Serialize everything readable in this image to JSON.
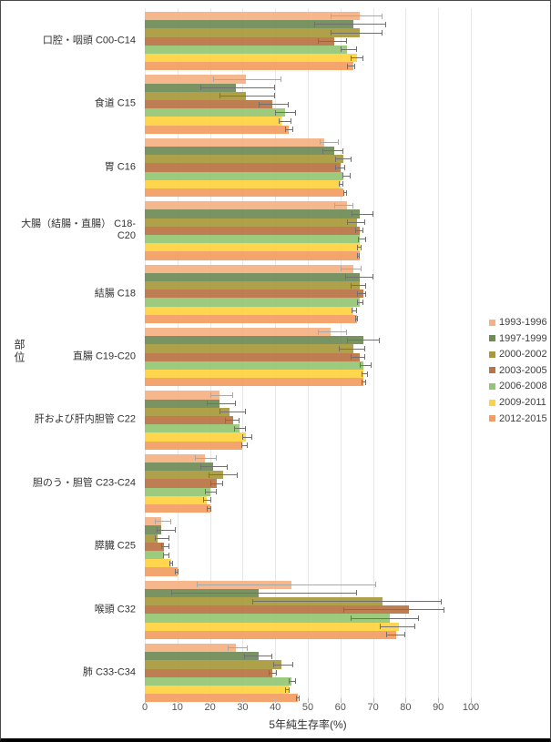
{
  "chart_data": {
    "type": "bar",
    "orientation": "horizontal",
    "xlabel": "5年純生存率(%)",
    "ylabel": "部位",
    "xlim": [
      0,
      100
    ],
    "xticks": [
      0,
      10,
      20,
      30,
      40,
      50,
      60,
      70,
      80,
      90,
      100
    ],
    "grid": true,
    "legend_position": "right",
    "error_bars": true,
    "categories": [
      "口腔・咽頭 C00-C14",
      "食道 C15",
      "胃 C16",
      "大腸（結腸・直腸） C18-C20",
      "結腸 C18",
      "直腸 C19-C20",
      "肝および肝内胆管 C22",
      "胆のう・胆管 C23-C24",
      "膵臓 C25",
      "喉頭 C32",
      "肺 C33-C34"
    ],
    "series": [
      {
        "name": "1993-1996",
        "color": "#F5B183",
        "error_color": "#a8a8a8",
        "values": [
          66,
          31,
          55,
          62,
          64,
          57,
          23,
          18.5,
          5,
          45,
          28
        ],
        "ci": [
          [
            57,
            73
          ],
          [
            21,
            42
          ],
          [
            53.5,
            59.5
          ],
          [
            58,
            64
          ],
          [
            60,
            66.5
          ],
          [
            53,
            62
          ],
          [
            20,
            27
          ],
          [
            15.5,
            22
          ],
          [
            3,
            8
          ],
          [
            16,
            71
          ],
          [
            25.5,
            31.5
          ]
        ]
      },
      {
        "name": "1997-1999",
        "color": "#6E8B55",
        "error_color": "#707070",
        "values": [
          64,
          28,
          58,
          66,
          66,
          67,
          23,
          21,
          5,
          35,
          35
        ],
        "ci": [
          [
            52,
            74
          ],
          [
            17,
            40
          ],
          [
            54.5,
            61
          ],
          [
            63.5,
            70
          ],
          [
            61.5,
            70
          ],
          [
            62,
            72
          ],
          [
            19,
            28
          ],
          [
            17,
            25.5
          ],
          [
            3.5,
            9.5
          ],
          [
            8,
            65
          ],
          [
            30.5,
            39
          ]
        ]
      },
      {
        "name": "2000-2002",
        "color": "#A89939",
        "error_color": "#707070",
        "values": [
          66,
          31,
          61,
          65,
          66,
          64,
          26,
          24,
          4,
          73,
          42
        ],
        "ci": [
          [
            57,
            73
          ],
          [
            23,
            40
          ],
          [
            58.5,
            63.5
          ],
          [
            62,
            67.5
          ],
          [
            63,
            68
          ],
          [
            59.5,
            67.5
          ],
          [
            23,
            31
          ],
          [
            19.5,
            28.5
          ],
          [
            3,
            7.5
          ],
          [
            33,
            91
          ],
          [
            39.5,
            45.5
          ]
        ]
      },
      {
        "name": "2003-2005",
        "color": "#BA7342",
        "error_color": "#707070",
        "values": [
          58,
          39,
          60,
          66,
          67,
          66,
          27,
          22,
          6,
          81,
          39
        ],
        "ci": [
          [
            53,
            62
          ],
          [
            35,
            44
          ],
          [
            58.5,
            61.5
          ],
          [
            64.5,
            67
          ],
          [
            65,
            68
          ],
          [
            63,
            67.5
          ],
          [
            24.5,
            29
          ],
          [
            20,
            24
          ],
          [
            5,
            7.5
          ],
          [
            61,
            92
          ],
          [
            38,
            40.5
          ]
        ]
      },
      {
        "name": "2006-2008",
        "color": "#94C573",
        "error_color": "#707070",
        "values": [
          62,
          43,
          61,
          66,
          66,
          67,
          29,
          20,
          6,
          75,
          45
        ],
        "ci": [
          [
            60,
            65
          ],
          [
            40,
            46.5
          ],
          [
            60.5,
            63
          ],
          [
            65.5,
            68
          ],
          [
            65,
            67
          ],
          [
            66,
            69.5
          ],
          [
            27.5,
            31
          ],
          [
            18.5,
            22
          ],
          [
            5.5,
            7.5
          ],
          [
            63,
            84
          ],
          [
            44,
            46.5
          ]
        ]
      },
      {
        "name": "2009-2011",
        "color": "#FFD23F",
        "error_color": "#707070",
        "values": [
          65,
          42,
          60,
          66,
          64,
          67,
          31,
          19,
          8,
          78,
          44
        ],
        "ci": [
          [
            63,
            67
          ],
          [
            41,
            45
          ],
          [
            59.5,
            61
          ],
          [
            65,
            66.5
          ],
          [
            63.5,
            65
          ],
          [
            66.5,
            68.5
          ],
          [
            30,
            33
          ],
          [
            18,
            20.5
          ],
          [
            7.5,
            8.7
          ],
          [
            72,
            83
          ],
          [
            43,
            44.5
          ]
        ]
      },
      {
        "name": "2012-2015",
        "color": "#F29D61",
        "error_color": "#707070",
        "values": [
          64,
          44,
          61,
          66,
          65,
          67,
          30,
          20,
          10,
          77,
          47
        ],
        "ci": [
          [
            62,
            64.5
          ],
          [
            43,
            45.5
          ],
          [
            61,
            62
          ],
          [
            65,
            66
          ],
          [
            64.5,
            65.5
          ],
          [
            66.5,
            68
          ],
          [
            29.5,
            31.5
          ],
          [
            19,
            20.5
          ],
          [
            9.2,
            10.3
          ],
          [
            74,
            80
          ],
          [
            46.3,
            47.5
          ]
        ]
      }
    ]
  }
}
